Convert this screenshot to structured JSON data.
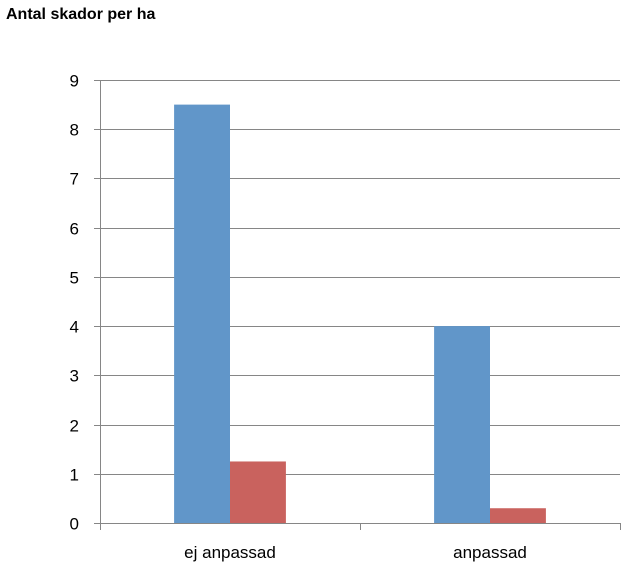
{
  "chart_data": {
    "type": "bar",
    "title": "Antal skador per ha",
    "xlabel": "",
    "ylabel": "",
    "categories": [
      "ej anpassad",
      "anpassad"
    ],
    "series": [
      {
        "values": [
          8.5,
          4.0
        ],
        "color": "#6196C9"
      },
      {
        "values": [
          1.25,
          0.3
        ],
        "color": "#C9625E"
      }
    ],
    "ylim": [
      0,
      9
    ],
    "yticks": [
      0,
      1,
      2,
      3,
      4,
      5,
      6,
      7,
      8,
      9
    ],
    "grid": true,
    "legend": "none"
  }
}
